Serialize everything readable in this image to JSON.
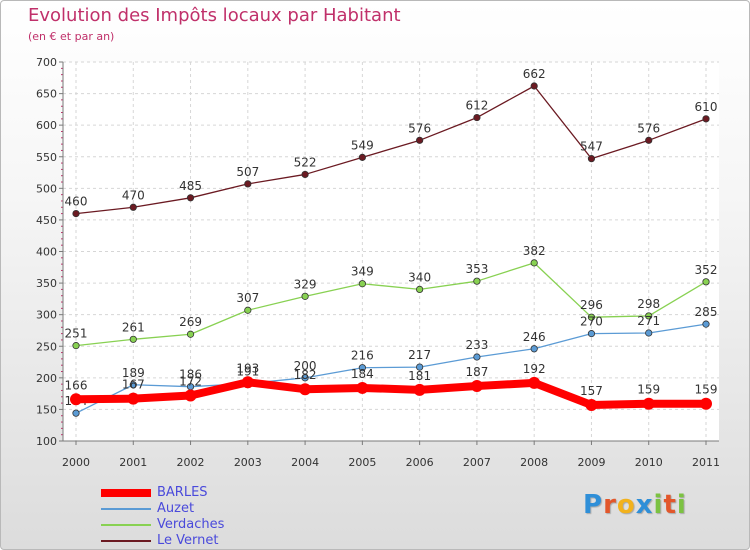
{
  "title": "Evolution des Impôts locaux par Habitant",
  "subtitle": "(en € et par an)",
  "chart_data": {
    "type": "line",
    "title": "Evolution des Impôts locaux par Habitant",
    "subtitle": "(en € et par an)",
    "xlabel": "",
    "ylabel": "",
    "categories": [
      "2000",
      "2001",
      "2002",
      "2003",
      "2004",
      "2005",
      "2006",
      "2007",
      "2008",
      "2009",
      "2010",
      "2011"
    ],
    "ylim": [
      100,
      700
    ],
    "yticks": [
      100,
      150,
      200,
      250,
      300,
      350,
      400,
      450,
      500,
      550,
      600,
      650,
      700
    ],
    "grid": true,
    "legend_position": "bottom-left",
    "series": [
      {
        "name": "Le Vernet",
        "color": "#6b1a22",
        "values": [
          460,
          470,
          485,
          507,
          522,
          549,
          576,
          612,
          662,
          547,
          576,
          610
        ],
        "labels": [
          "460",
          "470",
          "485",
          "507",
          "522",
          "549",
          "576",
          "612",
          "662",
          "547",
          "576",
          "610"
        ]
      },
      {
        "name": "Verdaches",
        "color": "#88d152",
        "values": [
          251,
          261,
          269,
          307,
          329,
          349,
          340,
          353,
          382,
          296,
          298,
          352
        ],
        "labels": [
          "251",
          "261",
          "269",
          "307",
          "329",
          "349",
          "340",
          "353",
          "382",
          "296",
          "298",
          "352"
        ]
      },
      {
        "name": "Auzet",
        "color": "#5b9bd5",
        "values": [
          144,
          189,
          186,
          191,
          200,
          216,
          217,
          233,
          246,
          270,
          271,
          285
        ],
        "labels": [
          "144",
          "189",
          "186",
          "191",
          "200",
          "216",
          "217",
          "233",
          "246",
          "270",
          "271",
          "285"
        ]
      },
      {
        "name": "BARLES",
        "color": "#ff0000",
        "values": [
          166,
          167,
          172,
          193,
          182,
          184,
          181,
          187,
          192,
          157,
          159,
          159
        ],
        "labels": [
          "166",
          "167",
          "172",
          "193",
          "182",
          "184",
          "181",
          "187",
          "192",
          "157",
          "159",
          "159"
        ]
      }
    ]
  },
  "legend": [
    {
      "label": "BARLES",
      "color": "#ff0000"
    },
    {
      "label": "Auzet",
      "color": "#5b9bd5"
    },
    {
      "label": "Verdaches",
      "color": "#88d152"
    },
    {
      "label": "Le Vernet",
      "color": "#6b1a22"
    }
  ],
  "logo": {
    "letters": [
      "P",
      "r",
      "o",
      "x",
      "i",
      "t",
      "i"
    ],
    "colors": [
      "#2f8fd8",
      "#e2572b",
      "#f2b21d",
      "#2f8fd8",
      "#7cc242",
      "#e2572b",
      "#7cc242"
    ]
  }
}
